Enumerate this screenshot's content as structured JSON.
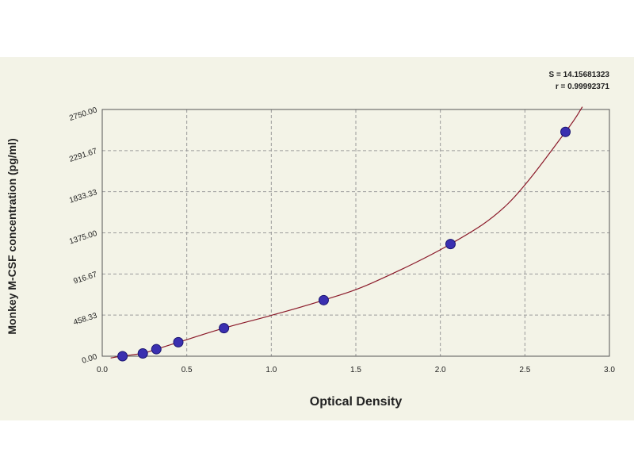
{
  "chart_data": {
    "type": "scatter",
    "xlabel": "Optical Density",
    "ylabel": "Monkey M-CSF concentration (pg/ml)",
    "xlim": [
      0.0,
      3.0
    ],
    "ylim": [
      0,
      2750
    ],
    "x_ticks": [
      "0.0",
      "0.5",
      "1.0",
      "1.5",
      "2.0",
      "2.5",
      "3.0"
    ],
    "y_ticks": [
      "0.00",
      "458.33",
      "916.67",
      "1375.00",
      "1833.33",
      "2291.67",
      "2750.00"
    ],
    "grid": true,
    "stats": [
      "S = 14.15681323",
      "r = 0.99992371"
    ],
    "points": [
      {
        "x": 0.12,
        "y": 0
      },
      {
        "x": 0.24,
        "y": 31
      },
      {
        "x": 0.32,
        "y": 78
      },
      {
        "x": 0.45,
        "y": 156
      },
      {
        "x": 0.72,
        "y": 313
      },
      {
        "x": 1.31,
        "y": 625
      },
      {
        "x": 2.06,
        "y": 1250
      },
      {
        "x": 2.74,
        "y": 2500
      }
    ],
    "fit_curve": {
      "type": "smooth",
      "x": [
        0.05,
        0.12,
        0.24,
        0.32,
        0.45,
        0.72,
        1.0,
        1.31,
        1.6,
        2.06,
        2.4,
        2.74,
        2.84
      ],
      "y": [
        -20,
        2,
        32,
        78,
        155,
        313,
        455,
        625,
        820,
        1250,
        1700,
        2500,
        2780
      ]
    },
    "colors": {
      "point": "#3a2fb0",
      "point_edge": "#1a1570",
      "curve": "#8b1a2a",
      "grid": "#9a9a9a",
      "axis": "#555555",
      "panel": "#f3f3e7"
    }
  }
}
